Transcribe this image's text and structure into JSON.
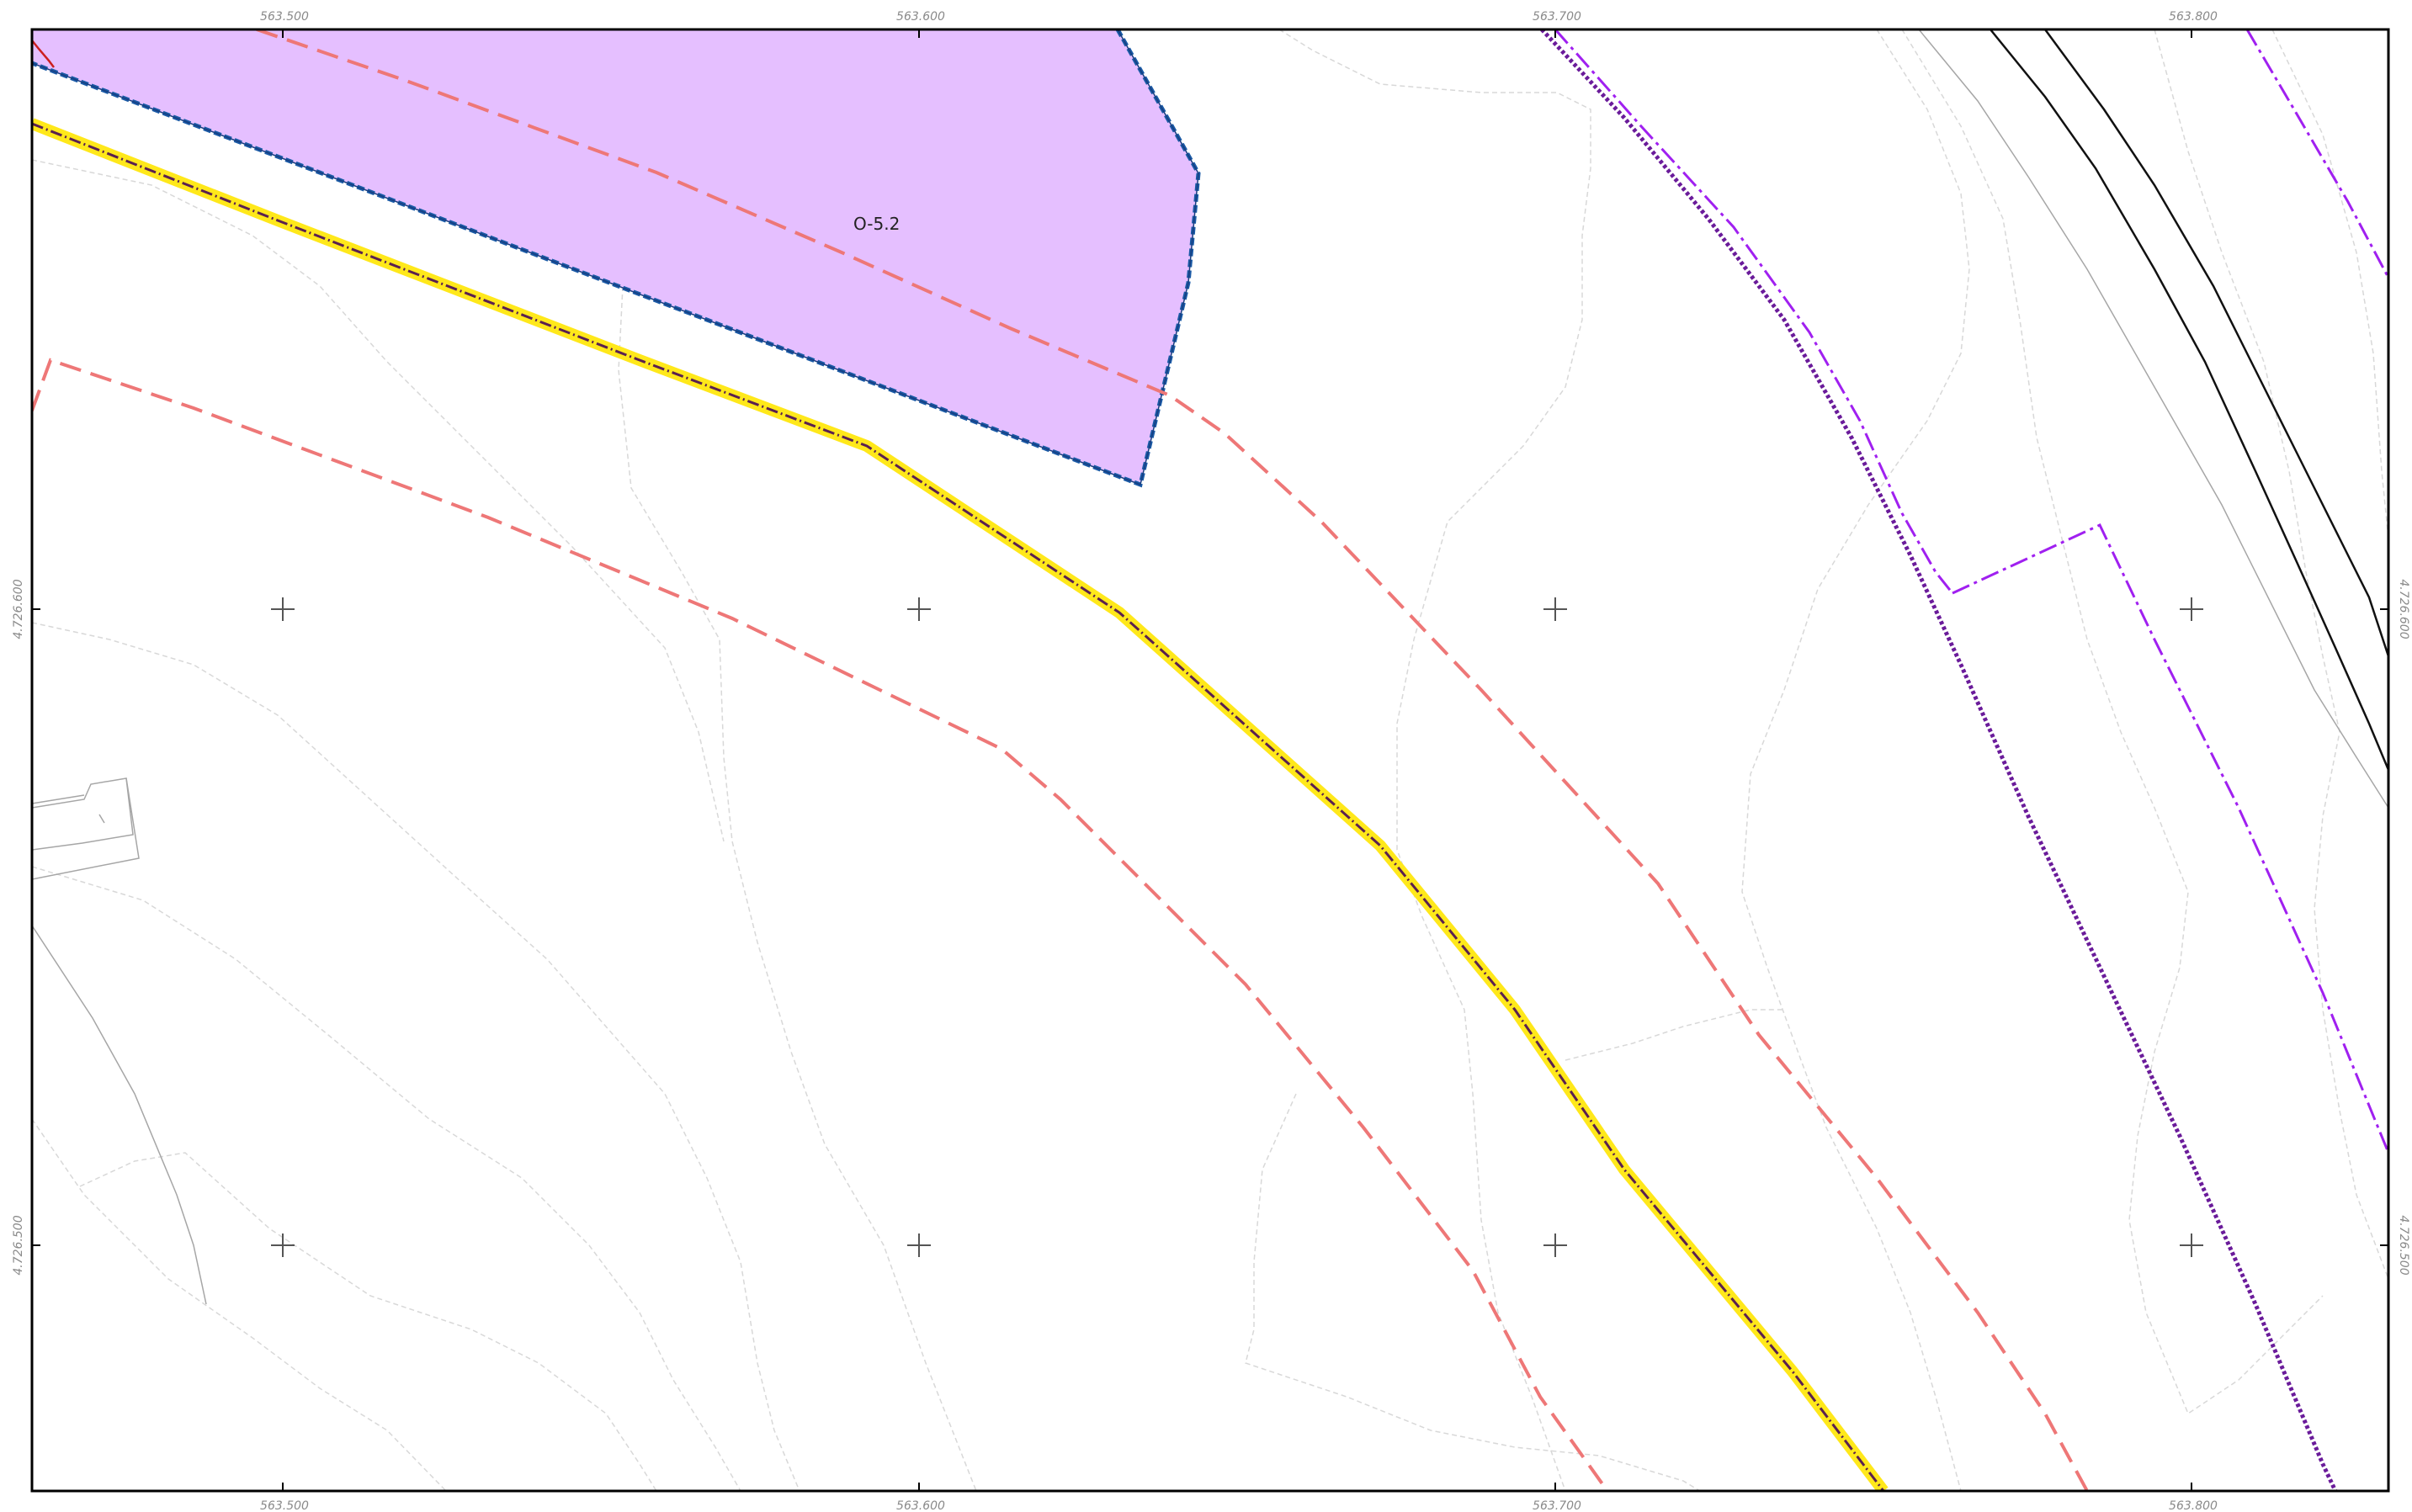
{
  "map": {
    "zone_label": "O-5.2",
    "easting_labels": [
      "563.500",
      "563.600",
      "563.700",
      "563.800"
    ],
    "northing_labels": [
      "4.726.600",
      "4.726.500"
    ]
  },
  "colors": {
    "background": "#ffffff",
    "frame": "#000000",
    "zone_fill": "#e5bfff",
    "zone_border": "#1a5aa6",
    "boundary_red": "#cc1f1f",
    "dashed_salmon": "#ee7777",
    "highlight_yellow": "#ffe81a",
    "axis_line": "#7a2a7a",
    "purple_dotted": "#6a1b9a",
    "violet_dashdot": "#a020f0",
    "contour": "#d6d6d6",
    "building": "#9a9a9a",
    "road_black": "#111111",
    "grid_cross": "#555555",
    "coord_text": "#8a8a8a"
  }
}
